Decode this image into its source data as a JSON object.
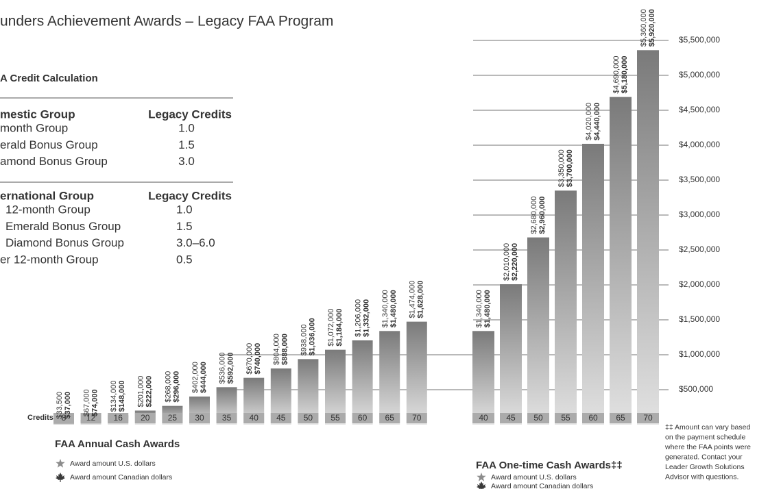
{
  "title": "unders Achievement Awards – Legacy FAA Program",
  "credit_table": {
    "title": "A Credit Calculation",
    "groups": [
      {
        "header": [
          "mestic Group",
          "Legacy Credits"
        ],
        "rows": [
          [
            "month Group",
            "1.0"
          ],
          [
            "erald Bonus Group",
            "1.5"
          ],
          [
            "amond Bonus Group",
            "3.0"
          ]
        ]
      },
      {
        "header": [
          "ernational Group",
          "Legacy Credits"
        ],
        "rows": [
          [
            "12-month Group",
            "1.0"
          ],
          [
            "Emerald Bonus Group",
            "1.5"
          ],
          [
            "Diamond Bonus Group",
            "3.0–6.0"
          ],
          [
            "er 12-month Group",
            "0.5"
          ]
        ]
      }
    ]
  },
  "credits_label": "Credits",
  "footnote": [
    "‡‡ Amount can vary based",
    "on the payment schedule",
    "where the FAA points were",
    "generated. Contact your",
    "Leader Growth Solutions",
    "Advisor with questions."
  ],
  "chart_data": [
    {
      "type": "bar",
      "title": "FAA Annual Cash Awards",
      "categories": [
        8,
        12,
        16,
        20,
        25,
        30,
        35,
        40,
        45,
        50,
        55,
        60,
        65,
        70
      ],
      "ylim": [
        0,
        6000000
      ],
      "series": [
        {
          "name": "Award amount U.S. dollars",
          "color": "#8c8c8c",
          "values": [
            33500,
            67000,
            134000,
            201000,
            268000,
            402000,
            536000,
            670000,
            804000,
            938000,
            1072000,
            1206000,
            1340000,
            1474000
          ],
          "value_labels": [
            "$33,500",
            "$67,000",
            "$134,000",
            "$201,000",
            "$268,000",
            "$402,000",
            "$536,000",
            "$670,000",
            "$804,000",
            "$938,000",
            "$1,072,000",
            "$1,206,000",
            "$1,340,000",
            "$1,474,000"
          ]
        },
        {
          "name": "Award amount Canadian dollars",
          "color": "#3a3a3a",
          "values": [
            37000,
            74000,
            148000,
            222000,
            296000,
            444000,
            592000,
            740000,
            888000,
            1036000,
            1184000,
            1332000,
            1480000,
            1628000
          ],
          "value_labels": [
            "$37,000",
            "$74,000",
            "$148,000",
            "$222,000",
            "$296,000",
            "$444,000",
            "$592,000",
            "$740,000",
            "$888,000",
            "$1,036,000",
            "$1,184,000",
            "$1,332,000",
            "$1,480,000",
            "$1,628,000"
          ]
        }
      ]
    },
    {
      "type": "bar",
      "title": "FAA One-time Cash Awards‡‡",
      "categories": [
        40,
        45,
        50,
        55,
        60,
        65,
        70
      ],
      "ylim": [
        0,
        6000000
      ],
      "yticks": [
        {
          "value": 500000,
          "label": "$500,000"
        },
        {
          "value": 1000000,
          "label": "$1,000,000"
        },
        {
          "value": 1500000,
          "label": "$1,500,000"
        },
        {
          "value": 2000000,
          "label": "$2,000,000"
        },
        {
          "value": 2500000,
          "label": "$2,500,000"
        },
        {
          "value": 3000000,
          "label": "$3,000,000"
        },
        {
          "value": 3500000,
          "label": "$3,500,000"
        },
        {
          "value": 4000000,
          "label": "$4,000,000"
        },
        {
          "value": 4500000,
          "label": "$4,500,000"
        },
        {
          "value": 5000000,
          "label": "$5,000,000"
        },
        {
          "value": 5500000,
          "label": "$5,500,000"
        }
      ],
      "series": [
        {
          "name": "Award amount U.S. dollars",
          "color": "#8c8c8c",
          "values": [
            1340000,
            2010000,
            2680000,
            3350000,
            4020000,
            4690000,
            5360000
          ],
          "value_labels": [
            "$1,340,000",
            "$2,010,000",
            "$2,680,000",
            "$3,350,000",
            "$4,020,000",
            "$4,690,000",
            "$5,360,000"
          ]
        },
        {
          "name": "Award amount Canadian dollars",
          "color": "#3a3a3a",
          "values": [
            1480000,
            2220000,
            2960000,
            3700000,
            4440000,
            5180000,
            5920000
          ],
          "value_labels": [
            "$1,480,000",
            "$2,220,000",
            "$2,960,000",
            "$3,700,000",
            "$4,440,000",
            "$5,180,000",
            "$5,920,000"
          ]
        }
      ]
    }
  ]
}
